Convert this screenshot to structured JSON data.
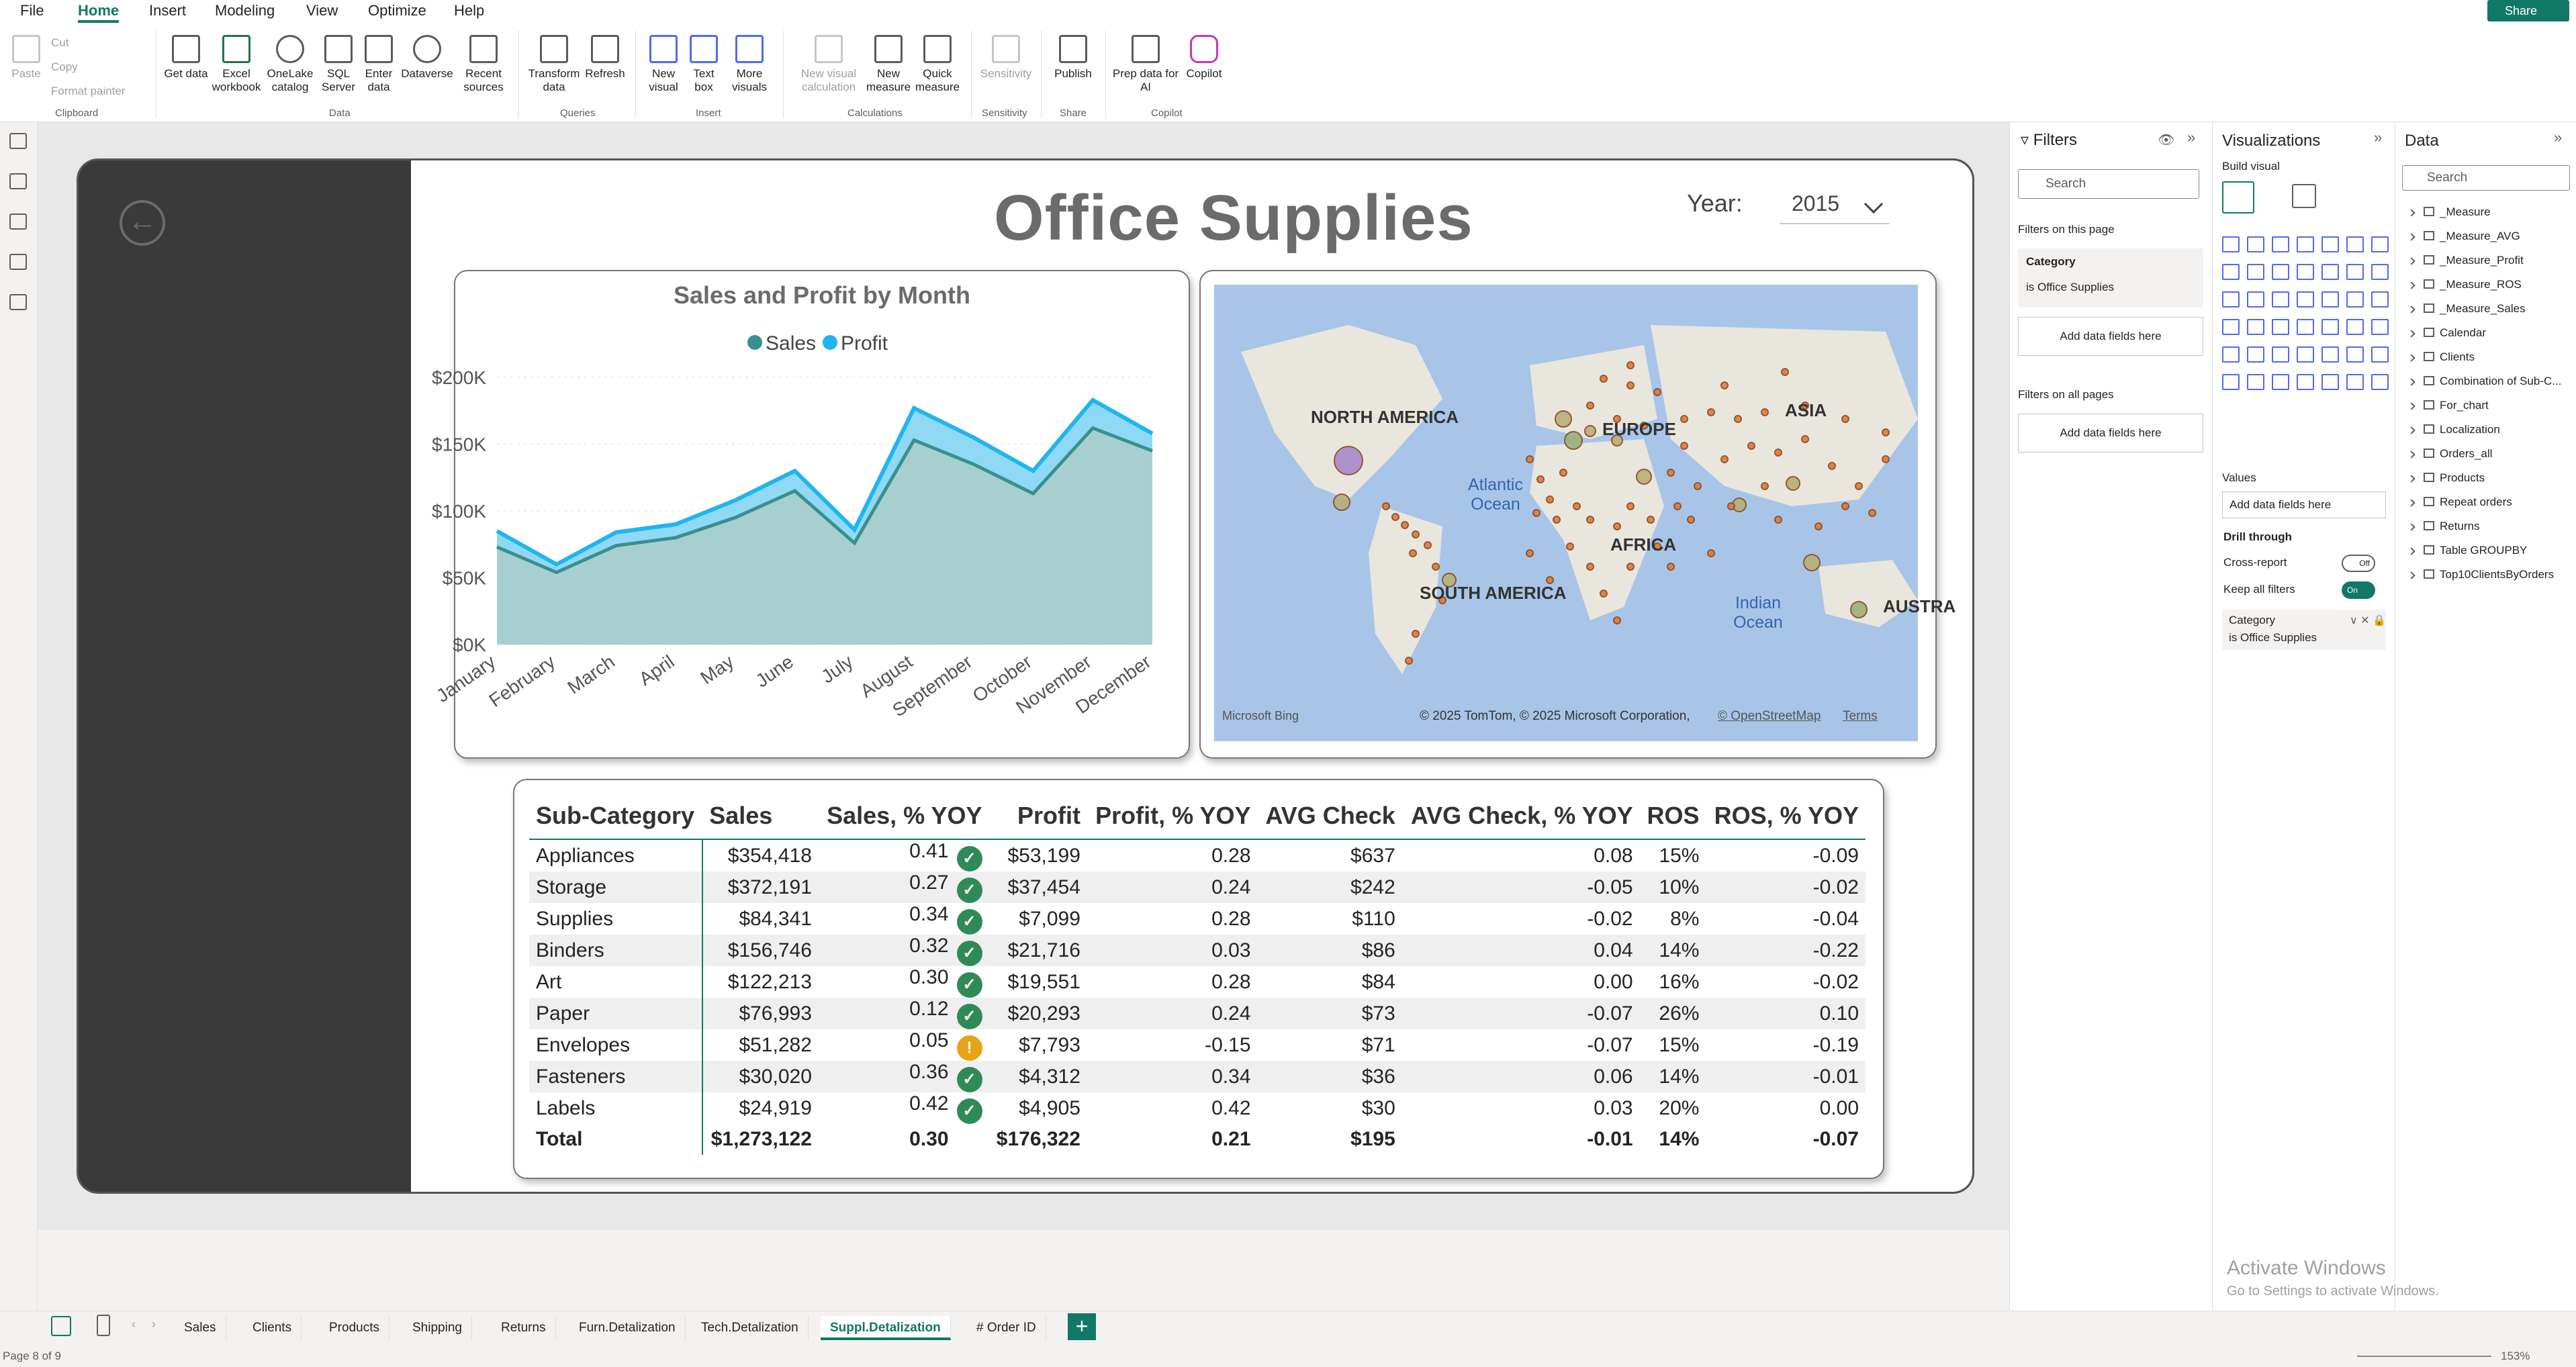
{
  "ribbon": {
    "tabs": [
      "File",
      "Home",
      "Insert",
      "Modeling",
      "View",
      "Optimize",
      "Help"
    ],
    "active_tab": "Home",
    "share_label": "Share",
    "clipboard": {
      "paste": "Paste",
      "cut": "Cut",
      "copy": "Copy",
      "format_painter": "Format painter",
      "group": "Clipboard"
    },
    "data_group": {
      "get_data": "Get data",
      "excel": "Excel workbook",
      "onelake": "OneLake catalog",
      "sql": "SQL Server",
      "enter": "Enter data",
      "dataverse": "Dataverse",
      "recent": "Recent sources",
      "group": "Data"
    },
    "queries": {
      "transform": "Transform data",
      "refresh": "Refresh",
      "group": "Queries"
    },
    "insert": {
      "new_visual": "New visual",
      "text_box": "Text box",
      "more_visuals": "More visuals",
      "group": "Insert"
    },
    "calc": {
      "new_visual_calc": "New visual calculation",
      "new_measure": "New measure",
      "quick_measure": "Quick measure",
      "group": "Calculations"
    },
    "sensitivity": {
      "label": "Sensitivity",
      "group": "Sensitivity"
    },
    "share": {
      "publish": "Publish",
      "group": "Share"
    },
    "copilot": {
      "prep": "Prep data for AI",
      "copilot": "Copilot",
      "group": "Copilot"
    }
  },
  "report": {
    "title": "Office Supplies",
    "year_label": "Year:",
    "year_value": "2015"
  },
  "chart_data": {
    "type": "area",
    "title": "Sales and Profit by Month",
    "categories": [
      "January",
      "February",
      "March",
      "April",
      "May",
      "June",
      "July",
      "August",
      "September",
      "October",
      "November",
      "December"
    ],
    "series": [
      {
        "name": "Sales",
        "values": [
          73000,
          54000,
          74000,
          80000,
          95000,
          115000,
          76000,
          153000,
          135000,
          113000,
          162000,
          145000
        ]
      },
      {
        "name": "Profit",
        "values": [
          85000,
          60000,
          84000,
          90000,
          108000,
          130000,
          86000,
          177000,
          155000,
          130000,
          183000,
          158000
        ]
      }
    ],
    "y_ticks": [
      "$200K",
      "$150K",
      "$100K",
      "$50K",
      "$0K"
    ],
    "ylim": [
      0,
      200000
    ],
    "colors": {
      "Sales": "#3a8f8f",
      "Profit": "#1fb5f0"
    },
    "legend_position": "top"
  },
  "map": {
    "labels": {
      "na": "NORTH AMERICA",
      "sa": "SOUTH AMERICA",
      "eu": "EUROPE",
      "af": "AFRICA",
      "as": "ASIA",
      "au": "AUSTRA",
      "atl": "Atlantic Ocean",
      "ind": "Indian Ocean"
    },
    "attribution": "© 2025 TomTom, © 2025 Microsoft Corporation,",
    "osm": "© OpenStreetMap",
    "terms": "Terms",
    "bing": "Microsoft Bing"
  },
  "table": {
    "headers": [
      "Sub-Category",
      "Sales",
      "Sales, % YOY",
      "Profit",
      "Profit, % YOY",
      "AVG Check",
      "AVG Check, % YOY",
      "ROS",
      "ROS, % YOY"
    ],
    "rows": [
      {
        "name": "Appliances",
        "sales": "$354,418",
        "syoy": "0.41",
        "kpi": "ok",
        "profit": "$53,199",
        "pyoy": "0.28",
        "avg": "$637",
        "ayoy": "0.08",
        "ros": "15%",
        "ryoy": "-0.09"
      },
      {
        "name": "Storage",
        "sales": "$372,191",
        "syoy": "0.27",
        "kpi": "ok",
        "profit": "$37,454",
        "pyoy": "0.24",
        "avg": "$242",
        "ayoy": "-0.05",
        "ros": "10%",
        "ryoy": "-0.02"
      },
      {
        "name": "Supplies",
        "sales": "$84,341",
        "syoy": "0.34",
        "kpi": "ok",
        "profit": "$7,099",
        "pyoy": "0.28",
        "avg": "$110",
        "ayoy": "-0.02",
        "ros": "8%",
        "ryoy": "-0.04"
      },
      {
        "name": "Binders",
        "sales": "$156,746",
        "syoy": "0.32",
        "kpi": "ok",
        "profit": "$21,716",
        "pyoy": "0.03",
        "avg": "$86",
        "ayoy": "0.04",
        "ros": "14%",
        "ryoy": "-0.22"
      },
      {
        "name": "Art",
        "sales": "$122,213",
        "syoy": "0.30",
        "kpi": "ok",
        "profit": "$19,551",
        "pyoy": "0.28",
        "avg": "$84",
        "ayoy": "0.00",
        "ros": "16%",
        "ryoy": "-0.02"
      },
      {
        "name": "Paper",
        "sales": "$76,993",
        "syoy": "0.12",
        "kpi": "ok",
        "profit": "$20,293",
        "pyoy": "0.24",
        "avg": "$73",
        "ayoy": "-0.07",
        "ros": "26%",
        "ryoy": "0.10"
      },
      {
        "name": "Envelopes",
        "sales": "$51,282",
        "syoy": "0.05",
        "kpi": "warn",
        "profit": "$7,793",
        "pyoy": "-0.15",
        "avg": "$71",
        "ayoy": "-0.07",
        "ros": "15%",
        "ryoy": "-0.19"
      },
      {
        "name": "Fasteners",
        "sales": "$30,020",
        "syoy": "0.36",
        "kpi": "ok",
        "profit": "$4,312",
        "pyoy": "0.34",
        "avg": "$36",
        "ayoy": "0.06",
        "ros": "14%",
        "ryoy": "-0.01"
      },
      {
        "name": "Labels",
        "sales": "$24,919",
        "syoy": "0.42",
        "kpi": "ok",
        "profit": "$4,905",
        "pyoy": "0.42",
        "avg": "$30",
        "ayoy": "0.03",
        "ros": "20%",
        "ryoy": "0.00"
      }
    ],
    "total": {
      "name": "Total",
      "sales": "$1,273,122",
      "syoy": "0.30",
      "profit": "$176,322",
      "pyoy": "0.21",
      "avg": "$195",
      "ayoy": "-0.01",
      "ros": "14%",
      "ryoy": "-0.07"
    }
  },
  "filters": {
    "title": "Filters",
    "search": "Search",
    "on_page": "Filters on this page",
    "card_title": "Category",
    "card_value": "is Office Supplies",
    "add": "Add data fields here",
    "all_pages": "Filters on all pages"
  },
  "viz": {
    "title": "Visualizations",
    "build": "Build visual",
    "values": "Values",
    "add": "Add data fields here",
    "drill": "Drill through",
    "cross": "Cross-report",
    "cross_state": "Off",
    "keep": "Keep all filters",
    "keep_state": "On",
    "field_title": "Category",
    "field_value": "is Office Supplies"
  },
  "data": {
    "title": "Data",
    "search": "Search",
    "tables": [
      "_Measure",
      "_Measure_AVG",
      "_Measure_Profit",
      "_Measure_ROS",
      "_Measure_Sales",
      "Calendar",
      "Clients",
      "Combination of Sub-C...",
      "For_chart",
      "Localization",
      "Orders_all",
      "Products",
      "Repeat orders",
      "Returns",
      "Table GROUPBY",
      "Top10ClientsByOrders"
    ]
  },
  "pages": {
    "tabs": [
      "Sales",
      "Clients",
      "Products",
      "Shipping",
      "Returns",
      "Furn.Detalization",
      "Tech.Detalization",
      "Suppl.Detalization",
      "# Order ID"
    ],
    "active": "Suppl.Detalization"
  },
  "status": {
    "page": "Page 8 of 9",
    "zoom": "153%"
  },
  "watermark": {
    "line1": "Activate Windows",
    "line2": "Go to Settings to activate Windows."
  }
}
